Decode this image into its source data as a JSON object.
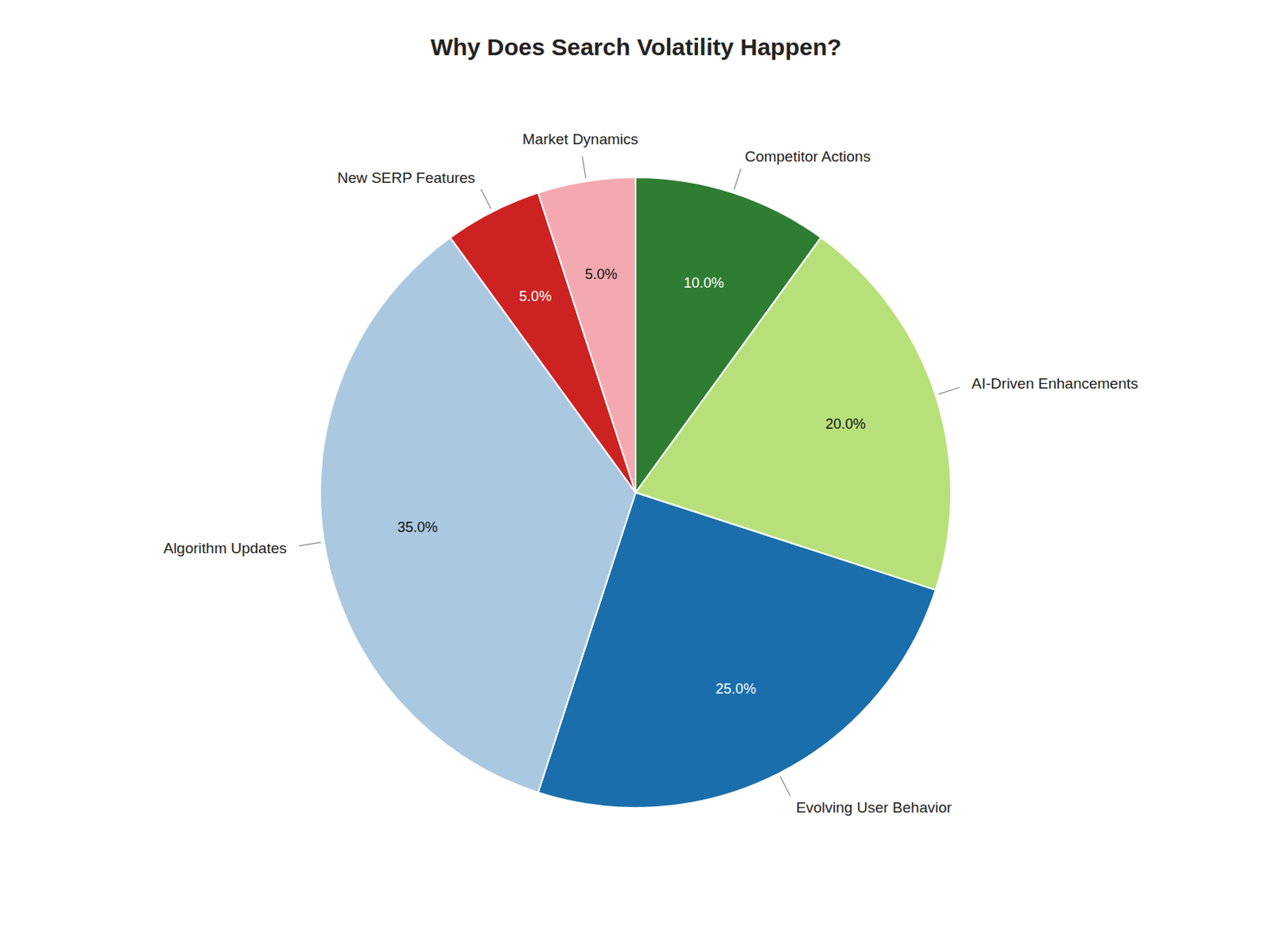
{
  "chart_data": {
    "type": "pie",
    "title": "Why Does Search Volatility Happen?",
    "categories": [
      "Competitor Actions",
      "AI-Driven Enhancements",
      "Evolving User Behavior",
      "Algorithm Updates",
      "New SERP Features",
      "Market Dynamics"
    ],
    "values": [
      10.0,
      20.0,
      25.0,
      35.0,
      5.0,
      5.0
    ],
    "value_labels": [
      "10.0%",
      "20.0%",
      "25.0%",
      "35.0%",
      "5.0%",
      "5.0%"
    ],
    "colors": [
      "#2e7d32",
      "#b8e07a",
      "#1a6eab",
      "#aac8e0",
      "#cc2222",
      "#f4a9b0"
    ],
    "data_labels": true
  }
}
